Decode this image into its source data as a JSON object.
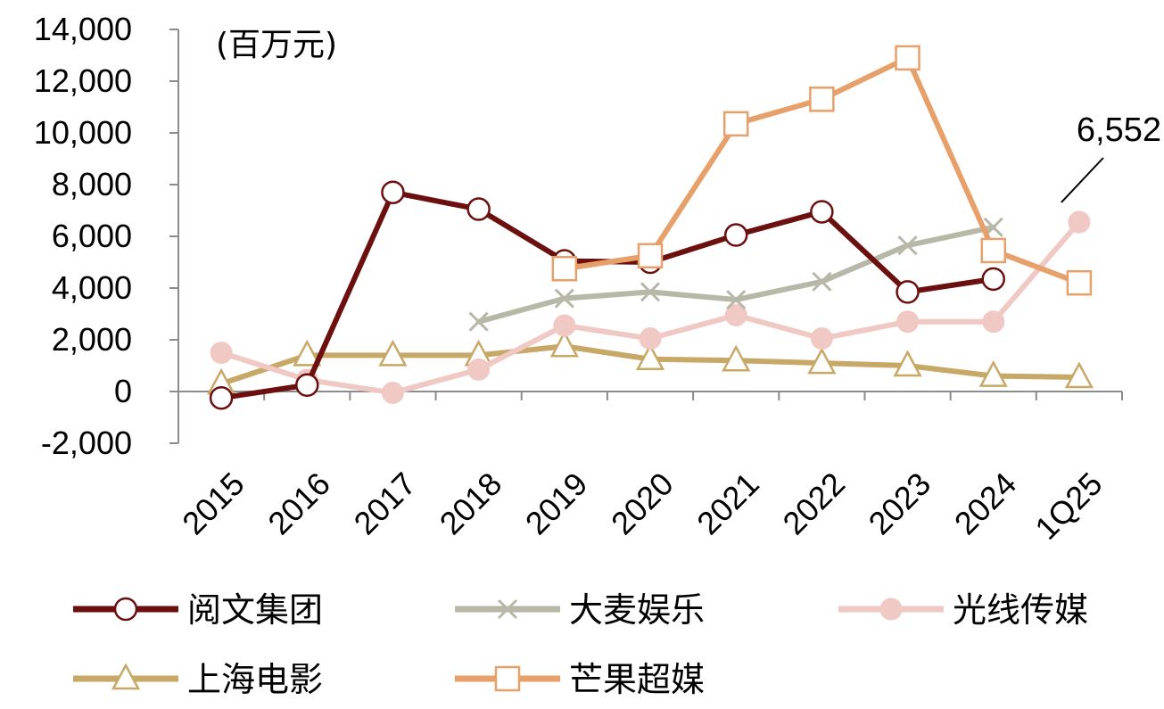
{
  "chart_data": {
    "type": "line",
    "unit_label": "(百万元)",
    "categories": [
      "2015",
      "2016",
      "2017",
      "2018",
      "2019",
      "2020",
      "2021",
      "2022",
      "2023",
      "2024",
      "1Q25"
    ],
    "ylim": [
      -2000,
      14000
    ],
    "yticks": [
      "14,000",
      "12,000",
      "10,000",
      "8,000",
      "6,000",
      "4,000",
      "2,000",
      "0",
      "-2,000"
    ],
    "ytick_values": [
      14000,
      12000,
      10000,
      8000,
      6000,
      4000,
      2000,
      0,
      -2000
    ],
    "grid": false,
    "legend_position": "bottom",
    "series": [
      {
        "name": "阅文集团",
        "color": "#6b0f0f",
        "marker": "open-circle",
        "values": [
          -250,
          250,
          7700,
          7050,
          5050,
          5000,
          6050,
          6950,
          3850,
          4350,
          null
        ]
      },
      {
        "name": "大麦娱乐",
        "color": "#b8b8a8",
        "marker": "x",
        "values": [
          null,
          null,
          null,
          2700,
          3600,
          3850,
          3550,
          4250,
          5650,
          6350,
          null
        ]
      },
      {
        "name": "光线传媒",
        "color": "#f0c8c4",
        "marker": "filled-circle",
        "values": [
          1500,
          450,
          -50,
          850,
          2550,
          2050,
          2950,
          2050,
          2700,
          2700,
          6552
        ]
      },
      {
        "name": "上海电影",
        "color": "#c8a866",
        "marker": "open-triangle",
        "values": [
          300,
          1400,
          1400,
          1400,
          1750,
          1250,
          1200,
          1100,
          1000,
          600,
          550
        ]
      },
      {
        "name": "芒果超媒",
        "color": "#e8a06a",
        "marker": "open-square",
        "values": [
          null,
          null,
          null,
          null,
          4750,
          5250,
          10350,
          11300,
          12900,
          5450,
          4200
        ]
      }
    ],
    "annotations": [
      {
        "text": "6,552",
        "series": "光线传媒",
        "category": "1Q25"
      }
    ]
  }
}
